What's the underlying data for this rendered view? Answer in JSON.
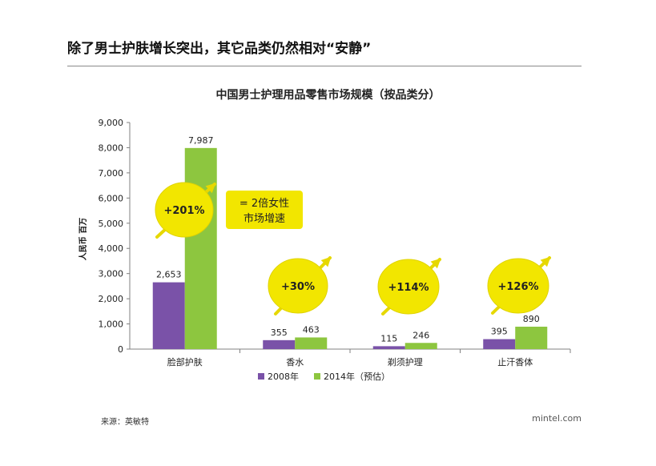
{
  "headline": "除了男士护肤增长突出，其它品类仍然相对“安静”",
  "source": "来源：英敏特",
  "brand": "mintel.com",
  "colors": {
    "series_2008": "#7a52a8",
    "series_2014": "#8dc63f",
    "bubble": "#f2e600",
    "bubble_outline": "#e0d300",
    "arrow": "#e6d800",
    "axis": "#808080",
    "gridline": "none"
  },
  "chart_data": {
    "type": "bar",
    "title": "中国男士护理用品零售市场规模（按品类分）",
    "xlabel": "",
    "ylabel": "人民币 百万",
    "ylim": [
      0,
      9000
    ],
    "yticks": [
      "0",
      "1,000",
      "2,000",
      "3,000",
      "4,000",
      "5,000",
      "6,000",
      "7,000",
      "8,000",
      "9,000"
    ],
    "categories": [
      "脸部护肤",
      "香水",
      "剃须护理",
      "止汗香体"
    ],
    "series": [
      {
        "name": "2008年",
        "values": [
          2653,
          355,
          115,
          395
        ],
        "labels": [
          "2,653",
          "355",
          "115",
          "395"
        ]
      },
      {
        "name": "2014年（预估）",
        "values": [
          7987,
          463,
          246,
          890
        ],
        "labels": [
          "7,987",
          "463",
          "246",
          "890"
        ]
      }
    ],
    "growth_labels": [
      "+201%",
      "+30%",
      "+114%",
      "+126%"
    ],
    "callout": [
      "= 2倍女性",
      "市场增速"
    ],
    "legend_position": "bottom",
    "grid": false
  }
}
